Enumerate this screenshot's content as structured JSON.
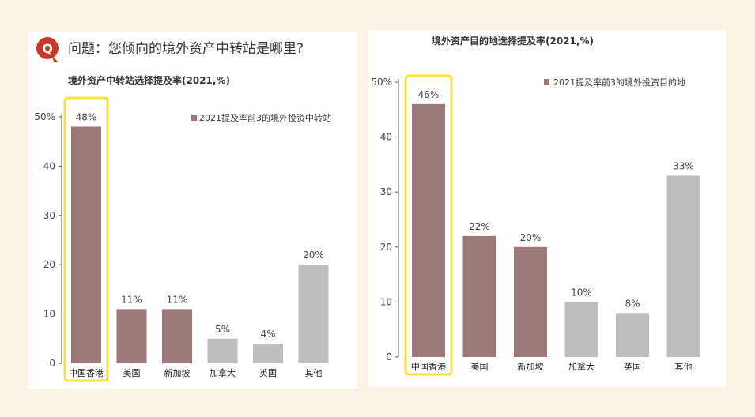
{
  "header": {
    "logo_letter": "Q",
    "question": "问题：您倾向的境外资产中转站是哪里?"
  },
  "colors": {
    "highlight_bar": "#9c7878",
    "other_bar": "#bdbdbd",
    "highlight_frame": "#f7e23a",
    "logo": "#c8392c"
  },
  "chart_data": [
    {
      "type": "bar",
      "title": "境外资产中转站选择提及率(2021,%)",
      "categories": [
        "中国香港",
        "美国",
        "新加坡",
        "加拿大",
        "英国",
        "其他"
      ],
      "values": [
        48,
        11,
        11,
        5,
        4,
        20
      ],
      "value_labels": [
        "48%",
        "11%",
        "11%",
        "5%",
        "4%",
        "20%"
      ],
      "highlighted_top3": [
        true,
        true,
        true,
        false,
        false,
        false
      ],
      "ylim": [
        0,
        50
      ],
      "y_ticks": [
        "0",
        "10",
        "20",
        "30",
        "40",
        "50%"
      ],
      "legend": "2021提及率前3的境外投资中转站",
      "legend_position": "top-right",
      "boxed_category": "中国香港"
    },
    {
      "type": "bar",
      "title": "境外资产目的地选择提及率(2021,%)",
      "categories": [
        "中国香港",
        "美国",
        "新加坡",
        "加拿大",
        "英国",
        "其他"
      ],
      "values": [
        46,
        22,
        20,
        10,
        8,
        33
      ],
      "value_labels": [
        "46%",
        "22%",
        "20%",
        "10%",
        "8%",
        "33%"
      ],
      "highlighted_top3": [
        true,
        true,
        true,
        false,
        false,
        false
      ],
      "ylim": [
        0,
        50
      ],
      "y_ticks": [
        "0",
        "10",
        "20",
        "30",
        "40",
        "50%"
      ],
      "legend": "2021提及率前3的境外投资目的地",
      "legend_position": "top-right",
      "boxed_category": "中国香港"
    }
  ]
}
